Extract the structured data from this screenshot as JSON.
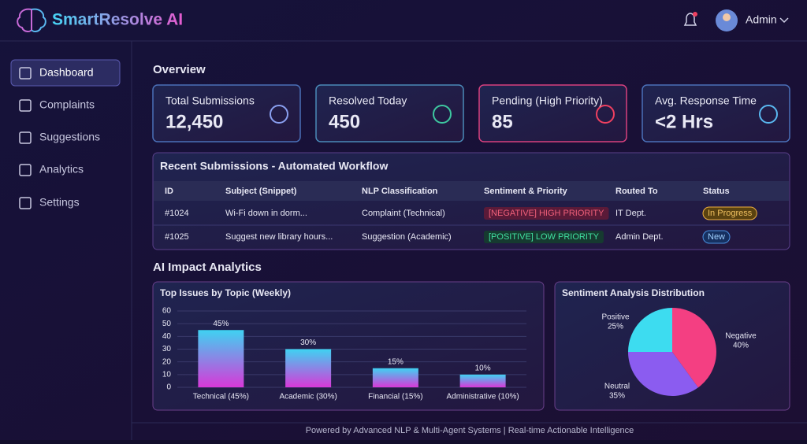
{
  "header": {
    "brand": "SmartResolve AI",
    "user": "Admin"
  },
  "sidebar": {
    "items": [
      "Dashboard",
      "Complaints",
      "Suggestions",
      "Analytics",
      "Settings"
    ]
  },
  "overview": {
    "title": "Overview",
    "cards": [
      {
        "label": "Total Submissions",
        "value": "12,450"
      },
      {
        "label": "Resolved Today",
        "value": "450"
      },
      {
        "label": "Pending (High Priority)",
        "value": "85"
      },
      {
        "label": "Avg. Response Time",
        "value": "<2 Hrs"
      }
    ]
  },
  "table": {
    "title": "Recent Submissions - Automated Workflow",
    "columns": [
      "ID",
      "Subject (Snippet)",
      "NLP Classification",
      "Sentiment & Priority",
      "Routed To",
      "Status"
    ],
    "rows": [
      [
        "#1024",
        "Wi-Fi down in dorm...",
        "Complaint (Technical)",
        "[NEGATIVE] HIGH PRIORITY",
        "IT Dept.",
        "In Progress"
      ],
      [
        "#1025",
        "Suggest new library hours...",
        "Suggestion (Academic)",
        "[POSITIVE] LOW PRIORITY",
        "Admin Dept.",
        "New"
      ]
    ]
  },
  "analytics": {
    "title": "AI Impact Analytics"
  },
  "chart_data": [
    {
      "type": "bar",
      "title": "Top Issues by Topic (Weekly)",
      "categories": [
        "Technical (45%)",
        "Academic (30%)",
        "Financial (15%)",
        "Administrative (10%)"
      ],
      "values": [
        45,
        30,
        15,
        10
      ],
      "value_labels": [
        "45%",
        "30%",
        "15%",
        "10%"
      ],
      "color": "#3fd2f2",
      "ylim": [
        0,
        60
      ],
      "yticks": [
        0,
        10,
        20,
        30,
        40,
        50,
        60
      ],
      "grid": true
    },
    {
      "type": "pie",
      "title": "Sentiment Analysis Distribution",
      "categories": [
        "Negative",
        "Neutral",
        "Positive"
      ],
      "values": [
        40,
        35,
        25
      ],
      "value_labels": [
        "40%",
        "35%",
        "25%"
      ],
      "colors": [
        "#f43f82",
        "#8b5cf0",
        "#3ddcf0"
      ]
    }
  ],
  "footer": {
    "text": "Powered by Advanced NLP & Multi-Agent Systems | Real-time Actionable Intelligence"
  }
}
